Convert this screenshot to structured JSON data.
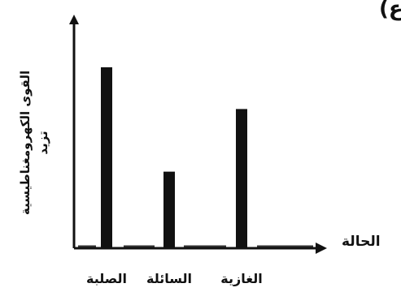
{
  "corner_label": "ع)",
  "chart_data": {
    "type": "bar",
    "title": "",
    "ylabel_lines": [
      "القوى الكهرومغناطيسية",
      "تزيد"
    ],
    "xlabel": "الحالة",
    "categories": [
      "الصلبة",
      "السائلة",
      "الغازية"
    ],
    "values": [
      78,
      33,
      60
    ],
    "ylim": [
      0,
      100
    ],
    "y_ticks": false,
    "grid": false,
    "legend": "none",
    "colors": {
      "bar": "#111111",
      "axis": "#111111",
      "baseline_segments": "#333333"
    }
  }
}
